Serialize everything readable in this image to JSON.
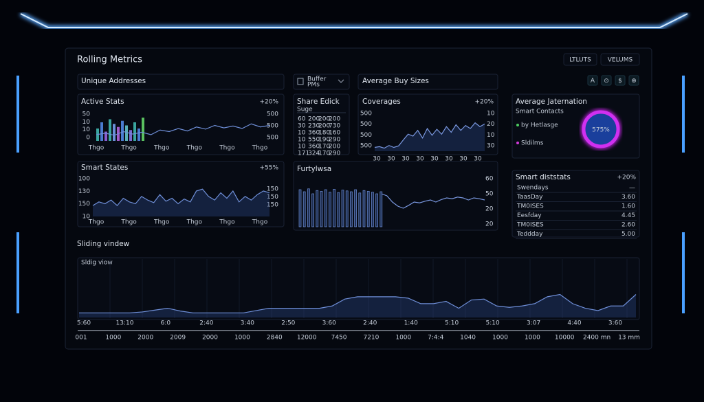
{
  "header": {
    "title": "Rolling Metrics",
    "buttons": [
      "LTLUTS",
      "VELUMS"
    ]
  },
  "tabs": {
    "unique": "Unique Addresses",
    "dropdown": [
      "Buffer",
      "PMs"
    ],
    "avg_buy": "Average Buy Sizes",
    "icons": [
      "A",
      "⊙",
      "$",
      "⊕"
    ]
  },
  "active_stats": {
    "title": "Active Stats",
    "change": "+20%",
    "y_left": [
      "50",
      "10",
      "10",
      "0"
    ],
    "y_right": [
      "500",
      "500",
      "500"
    ],
    "x_labels": [
      "Thgo",
      "Thgo",
      "Thgo",
      "Thgo",
      "Thgo",
      "Thgo"
    ],
    "ylim": [
      0,
      100
    ],
    "bars": {
      "values": [
        40,
        60,
        30,
        70,
        55,
        45,
        65,
        50,
        35,
        60,
        40,
        75
      ],
      "colors": [
        "#3aa6a0",
        "#4a7bd0",
        "#8a5bd0",
        "#3aa6a0",
        "#6b8fd8",
        "#a05bc8",
        "#4a7bd0",
        "#5ab0b8",
        "#7b6bd0",
        "#3aa6a0",
        "#4a7bd0",
        "#5ac060"
      ]
    },
    "line": [
      20,
      25,
      18,
      30,
      22,
      28,
      20,
      35,
      30,
      40,
      32,
      45,
      38,
      50,
      42,
      48,
      40,
      55,
      45,
      50
    ]
  },
  "share_table": {
    "title": "Share Edick",
    "subtitle": "Suge",
    "rows": [
      [
        "60",
        "200",
        "200",
        "200"
      ],
      [
        "30",
        "230",
        "200",
        "730"
      ],
      [
        "10",
        "360",
        "180",
        "160"
      ],
      [
        "10",
        "550",
        "190",
        "290"
      ],
      [
        "10",
        "360",
        "170",
        "200"
      ],
      [
        "171",
        "324",
        "170",
        "290"
      ]
    ]
  },
  "coverages": {
    "title": "Coverages",
    "change": "+20%",
    "y_left": [
      "500",
      "500",
      "500",
      "500"
    ],
    "y_right": [
      "10",
      "20",
      "10",
      "30"
    ],
    "x_labels": [
      "30",
      "30",
      "30",
      "30",
      "30",
      "30",
      "30",
      "30"
    ],
    "ylim": [
      0,
      100
    ],
    "values": [
      10,
      12,
      8,
      15,
      10,
      14,
      30,
      45,
      40,
      55,
      35,
      60,
      42,
      58,
      45,
      65,
      50,
      70,
      55,
      68,
      60,
      75,
      65,
      72
    ]
  },
  "avg_jaternation": {
    "title": "Average Jaternation",
    "subtitle": "Smart Contacts",
    "legend": [
      "by Hetlasge",
      "Sldilms"
    ],
    "donut_label": "575%"
  },
  "smart_states": {
    "title": "Smart States",
    "change": "+55%",
    "y_left": [
      "100",
      "130",
      "150",
      "10"
    ],
    "y_right": [
      "150",
      "150",
      "150"
    ],
    "x_labels": [
      "Thgo",
      "Thgo",
      "Thgo",
      "Thgo",
      "Thgo",
      "Thgo"
    ],
    "ylim": [
      0,
      100
    ],
    "values": [
      30,
      40,
      35,
      45,
      30,
      50,
      40,
      35,
      55,
      45,
      38,
      60,
      42,
      50,
      35,
      48,
      40,
      70,
      75,
      55,
      45,
      65,
      50,
      70,
      40,
      55,
      45,
      60,
      70,
      65
    ]
  },
  "furtylwsa": {
    "title": "Furtylwsa",
    "y_right": [
      "60",
      "50",
      "20",
      "20"
    ],
    "ylim": [
      0,
      100
    ],
    "bars": [
      90,
      85,
      92,
      80,
      88,
      86,
      90,
      84,
      91,
      83,
      89,
      87,
      85,
      90,
      82,
      88,
      86,
      84,
      80,
      85
    ],
    "line": [
      80,
      75,
      60,
      50,
      45,
      52,
      60,
      58,
      62,
      65,
      60,
      66,
      70,
      68,
      72,
      70,
      65,
      70,
      68,
      65
    ]
  },
  "smart_diststats": {
    "title": "Smart diststats",
    "change": "+20%",
    "rows": [
      [
        "Swendays",
        "—"
      ],
      [
        "TaasDay",
        "3.60"
      ],
      [
        "TM0ISES",
        "1.60"
      ],
      [
        "Eesfday",
        "4.45"
      ],
      [
        "TM0ISES",
        "2.60"
      ],
      [
        "Teddday",
        "5.00"
      ]
    ]
  },
  "sliding": {
    "title": "Sliding vindew",
    "panel_label": "Sldig viow",
    "ylim": [
      0,
      100
    ],
    "values": [
      10,
      10,
      10,
      10,
      10,
      12,
      16,
      20,
      14,
      10,
      10,
      10,
      10,
      10,
      15,
      20,
      20,
      20,
      20,
      20,
      25,
      40,
      45,
      45,
      45,
      45,
      42,
      30,
      30,
      35,
      20,
      38,
      40,
      25,
      22,
      25,
      30,
      45,
      50,
      30,
      20,
      15,
      25,
      25,
      50
    ],
    "x_labels_top": [
      "5:60",
      "13:10",
      "6:0",
      "2:40",
      "3:40",
      "2:50",
      "3:60",
      "2:40",
      "1:40",
      "5:10",
      "5:10",
      "3:07",
      "4:40",
      "3:60"
    ],
    "x_labels_bottom": [
      "001",
      "1000",
      "2000",
      "2009",
      "2000",
      "1000",
      "2840",
      "12000",
      "7450",
      "7210",
      "1000",
      "7:4:4",
      "1040",
      "1000",
      "1000",
      "10000",
      "2400 mn",
      "13 mm"
    ]
  }
}
